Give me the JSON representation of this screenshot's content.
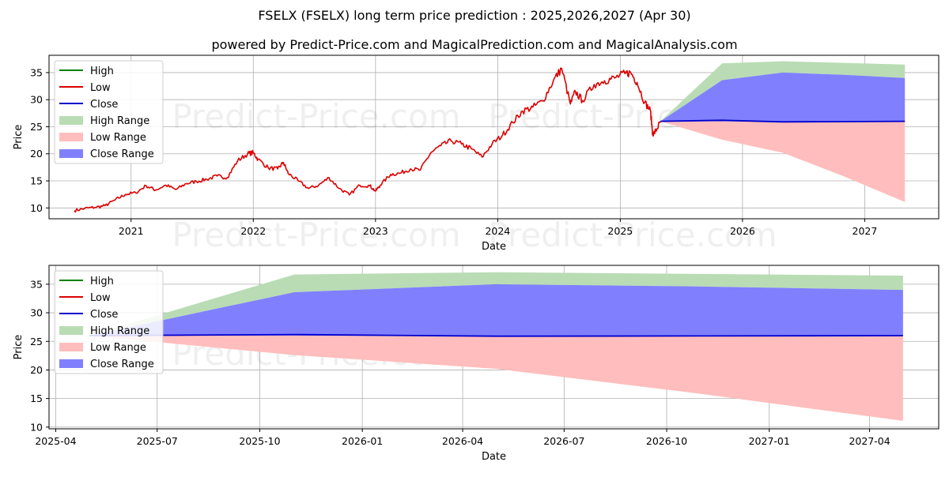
{
  "title": "FSELX (FSELX) long term price prediction : 2025,2026,2027 (Apr 30)",
  "subtitle": "powered by Predict-Price.com and MagicalPrediction.com and MagicalAnalysis.com",
  "watermark": "Predict-Price.com",
  "colors": {
    "high": "#008000",
    "low": "#dd0000",
    "close": "#0000cc",
    "high_range": "#b9dcb4",
    "low_range": "#ffbdbd",
    "close_range": "#8080ff",
    "grid": "#b0b0b0"
  },
  "chart_data": [
    {
      "type": "line",
      "xlabel": "Date",
      "ylabel": "Price",
      "xlim": [
        "2020-05-01",
        "2027-08-10"
      ],
      "ylim": [
        8,
        38.2
      ],
      "xticks": [
        "2021",
        "2022",
        "2023",
        "2024",
        "2025",
        "2026",
        "2027"
      ],
      "xtick_dates": [
        "2021-01-01",
        "2022-01-01",
        "2023-01-01",
        "2024-01-01",
        "2025-01-01",
        "2026-01-01",
        "2027-01-01"
      ],
      "yticks": [
        10,
        15,
        20,
        25,
        30,
        35
      ],
      "grid": true,
      "legend": {
        "position": "top-left",
        "entries": [
          "High",
          "Low",
          "Close",
          "High Range",
          "Low Range",
          "Close Range"
        ]
      },
      "history": {
        "name": "Low",
        "points": [
          [
            "2020-07-15",
            9.5
          ],
          [
            "2020-08-15",
            9.9
          ],
          [
            "2020-09-15",
            10.1
          ],
          [
            "2020-10-15",
            10.4
          ],
          [
            "2020-11-15",
            11.5
          ],
          [
            "2020-12-15",
            12.5
          ],
          [
            "2021-01-15",
            12.8
          ],
          [
            "2021-02-15",
            14.1
          ],
          [
            "2021-03-15",
            13.3
          ],
          [
            "2021-04-15",
            14.2
          ],
          [
            "2021-05-15",
            13.4
          ],
          [
            "2021-06-15",
            14.5
          ],
          [
            "2021-07-15",
            14.9
          ],
          [
            "2021-08-15",
            15.3
          ],
          [
            "2021-09-15",
            15.9
          ],
          [
            "2021-10-15",
            15.6
          ],
          [
            "2021-11-15",
            18.7
          ],
          [
            "2021-12-15",
            20.0
          ],
          [
            "2022-01-01",
            20.2
          ],
          [
            "2022-01-15",
            19.0
          ],
          [
            "2022-02-15",
            17.4
          ],
          [
            "2022-03-15",
            17.2
          ],
          [
            "2022-04-01",
            18.4
          ],
          [
            "2022-04-15",
            16.4
          ],
          [
            "2022-05-15",
            15.0
          ],
          [
            "2022-06-15",
            13.6
          ],
          [
            "2022-07-15",
            14.2
          ],
          [
            "2022-08-15",
            15.6
          ],
          [
            "2022-09-15",
            13.6
          ],
          [
            "2022-10-15",
            12.4
          ],
          [
            "2022-11-15",
            14.2
          ],
          [
            "2022-12-15",
            14.1
          ],
          [
            "2023-01-01",
            13.1
          ],
          [
            "2023-01-15",
            14.2
          ],
          [
            "2023-02-15",
            16.2
          ],
          [
            "2023-03-15",
            16.4
          ],
          [
            "2023-04-15",
            17.2
          ],
          [
            "2023-05-15",
            17.0
          ],
          [
            "2023-06-15",
            20.2
          ],
          [
            "2023-07-15",
            21.5
          ],
          [
            "2023-08-15",
            22.4
          ],
          [
            "2023-09-15",
            21.8
          ],
          [
            "2023-10-15",
            20.9
          ],
          [
            "2023-11-15",
            19.4
          ],
          [
            "2023-12-15",
            21.8
          ],
          [
            "2024-01-15",
            23.4
          ],
          [
            "2024-02-15",
            25.8
          ],
          [
            "2024-03-15",
            27.9
          ],
          [
            "2024-04-15",
            28.6
          ],
          [
            "2024-05-15",
            29.8
          ],
          [
            "2024-06-15",
            33.5
          ],
          [
            "2024-07-10",
            35.8
          ],
          [
            "2024-08-05",
            29.2
          ],
          [
            "2024-08-20",
            31.5
          ],
          [
            "2024-09-10",
            29.8
          ],
          [
            "2024-10-15",
            32.8
          ],
          [
            "2024-11-15",
            33.5
          ],
          [
            "2024-12-15",
            34.0
          ],
          [
            "2025-01-15",
            34.8
          ],
          [
            "2025-02-01",
            35.0
          ],
          [
            "2025-02-20",
            33.2
          ],
          [
            "2025-03-15",
            29.5
          ],
          [
            "2025-04-01",
            28.0
          ],
          [
            "2025-04-08",
            23.5
          ],
          [
            "2025-04-20",
            24.5
          ],
          [
            "2025-05-01",
            26.0
          ]
        ]
      },
      "forecast": {
        "dates": [
          "2025-05-01",
          "2025-11-01",
          "2026-05-01",
          "2026-11-01",
          "2027-05-01"
        ],
        "high_range_upper": [
          26.0,
          36.7,
          37.1,
          36.8,
          36.5
        ],
        "high_range_lower": [
          26.0,
          33.6,
          35.0,
          34.6,
          34.0
        ],
        "close_range_upper": [
          26.0,
          33.6,
          35.0,
          34.6,
          34.0
        ],
        "close_range_lower": [
          26.0,
          26.0,
          25.9,
          25.9,
          26.0
        ],
        "low_range_upper": [
          26.0,
          26.0,
          25.9,
          25.9,
          26.0
        ],
        "low_range_lower": [
          26.0,
          22.6,
          20.2,
          15.8,
          11.1
        ],
        "close": [
          26.0,
          26.2,
          25.9,
          25.95,
          26.0
        ]
      }
    },
    {
      "type": "area",
      "xlabel": "Date",
      "ylabel": "Price",
      "xlim": [
        "2025-03-26",
        "2027-06-02"
      ],
      "ylim": [
        9.7,
        38.3
      ],
      "xticks": [
        "2025-04",
        "2025-07",
        "2025-10",
        "2026-01",
        "2026-04",
        "2026-07",
        "2026-10",
        "2027-01",
        "2027-04"
      ],
      "xtick_dates": [
        "2025-04-01",
        "2025-07-01",
        "2025-10-01",
        "2026-01-01",
        "2026-04-01",
        "2026-07-01",
        "2026-10-01",
        "2027-01-01",
        "2027-04-01"
      ],
      "yticks": [
        10,
        15,
        20,
        25,
        30,
        35
      ],
      "grid": true,
      "legend": {
        "position": "top-left",
        "entries": [
          "High",
          "Low",
          "Close",
          "High Range",
          "Low Range",
          "Close Range"
        ]
      },
      "forecast": {
        "dates": [
          "2025-05-01",
          "2025-11-01",
          "2026-05-01",
          "2026-11-01",
          "2027-05-01"
        ],
        "high_range_upper": [
          26.0,
          36.7,
          37.1,
          36.8,
          36.5
        ],
        "high_range_lower": [
          26.0,
          33.6,
          35.0,
          34.6,
          34.0
        ],
        "close_range_upper": [
          26.0,
          33.6,
          35.0,
          34.6,
          34.0
        ],
        "close_range_lower": [
          26.0,
          26.0,
          25.9,
          25.9,
          26.0
        ],
        "low_range_upper": [
          26.0,
          26.0,
          25.9,
          25.9,
          26.0
        ],
        "low_range_lower": [
          26.0,
          22.6,
          20.2,
          15.8,
          11.1
        ],
        "close": [
          26.0,
          26.2,
          25.9,
          25.95,
          26.0
        ]
      }
    }
  ]
}
